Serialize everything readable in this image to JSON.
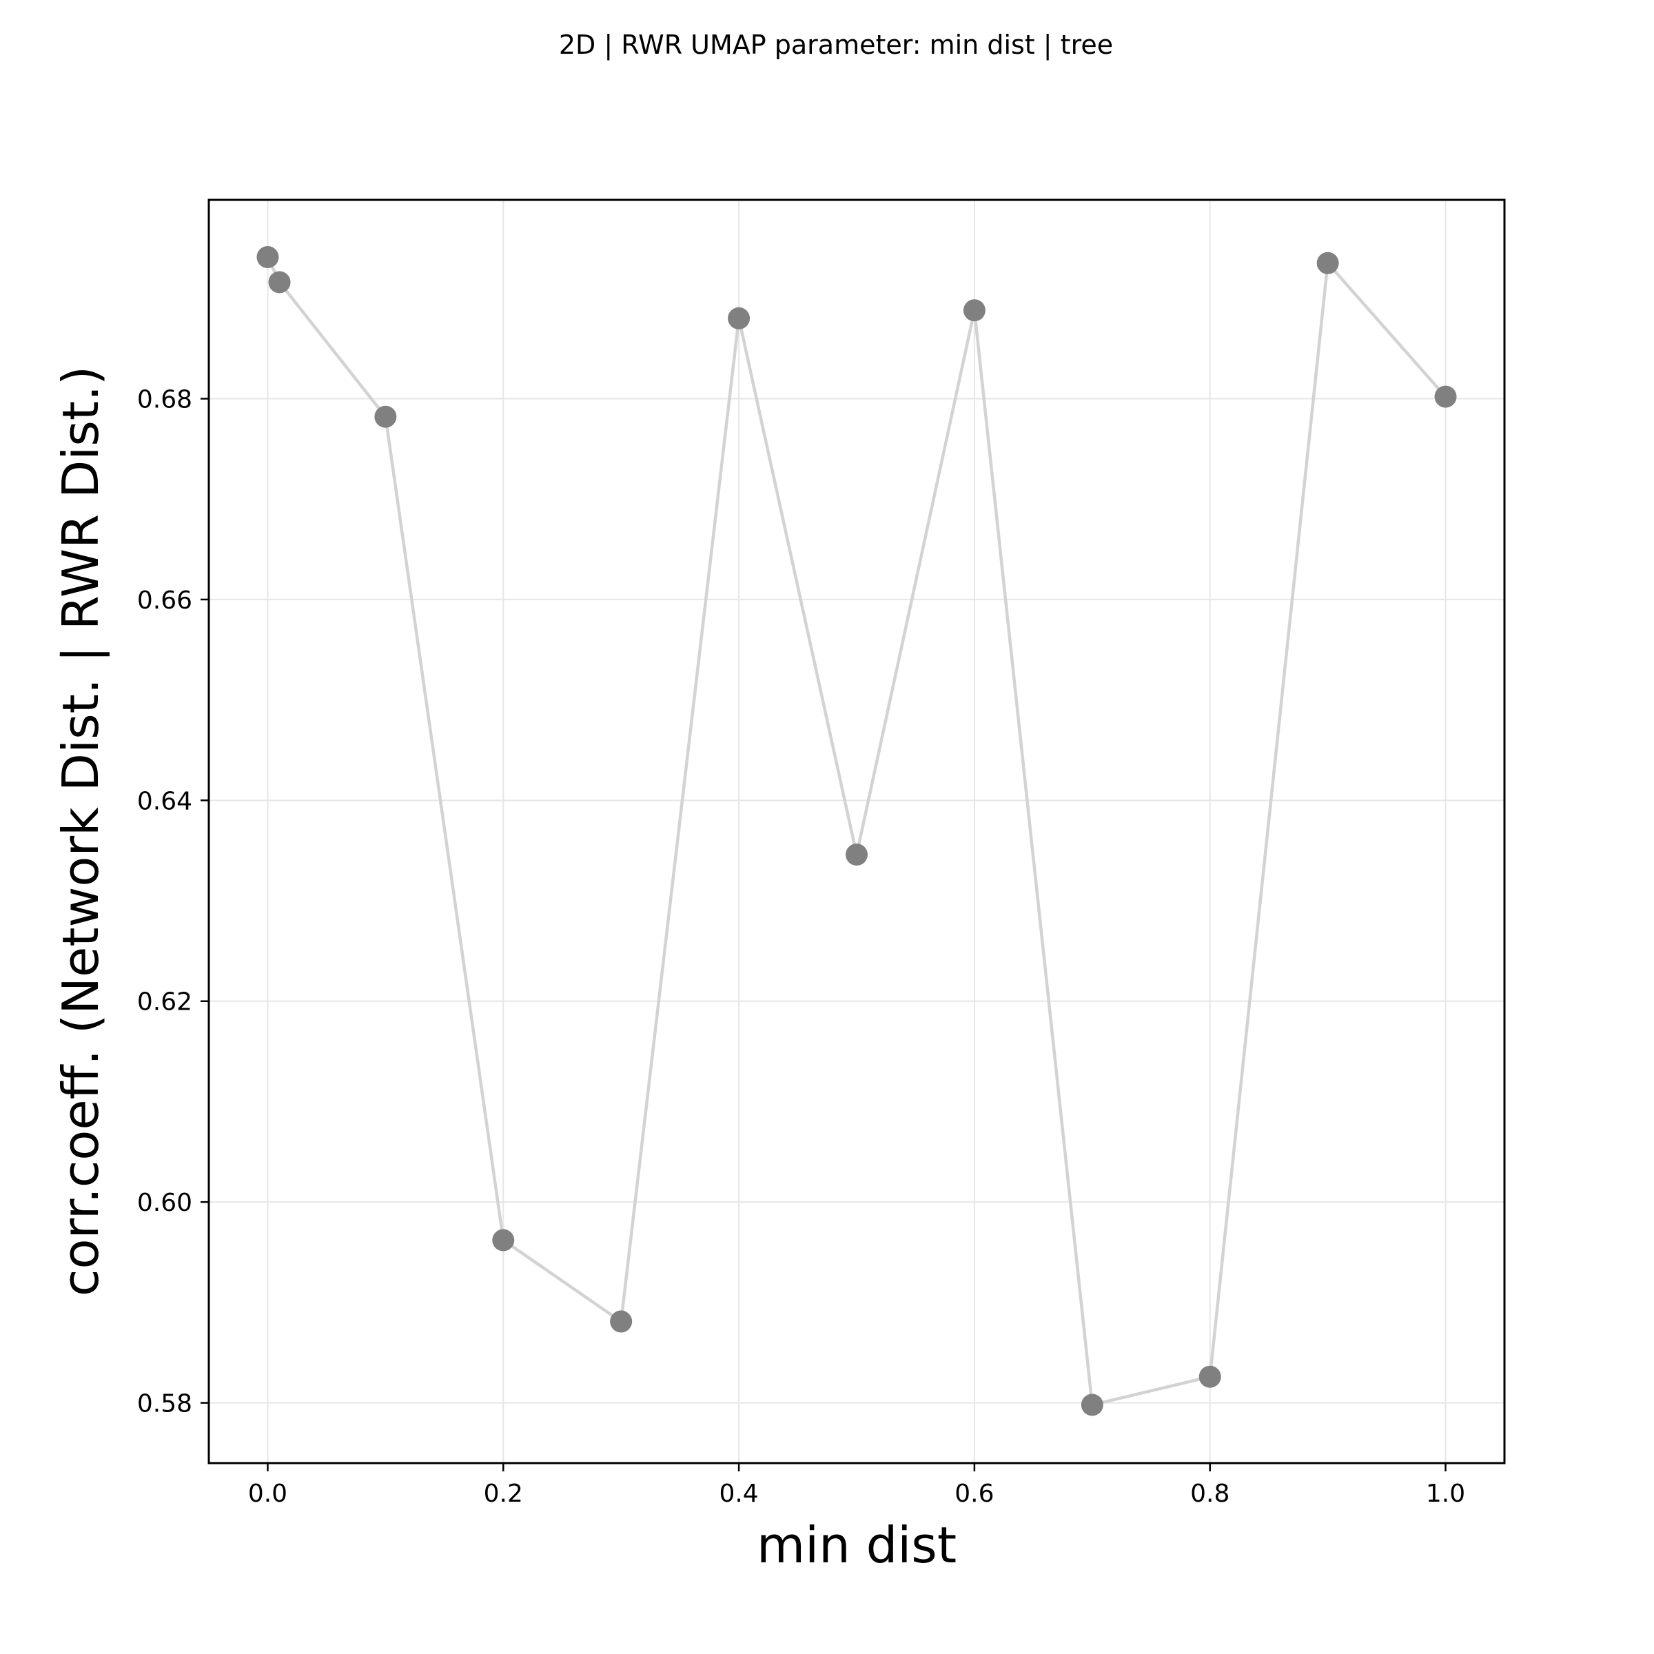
{
  "chart_data": {
    "type": "line",
    "title": "2D | RWR UMAP parameter: min dist | tree",
    "xlabel": "min dist",
    "ylabel": "corr.coeff. (Network Dist. | RWR Dist.)",
    "xlim": [
      -0.05,
      1.05
    ],
    "ylim": [
      0.574,
      0.6998
    ],
    "x_ticks": [
      0.0,
      0.2,
      0.4,
      0.6,
      0.8,
      1.0
    ],
    "x_tick_labels": [
      "0.0",
      "0.2",
      "0.4",
      "0.6",
      "0.8",
      "1.0"
    ],
    "y_ticks": [
      0.58,
      0.6,
      0.62,
      0.64,
      0.66,
      0.68
    ],
    "y_tick_labels": [
      "0.58",
      "0.60",
      "0.62",
      "0.64",
      "0.66",
      "0.68"
    ],
    "grid": true,
    "legend": false,
    "series": [
      {
        "x": [
          0.0,
          0.01,
          0.1,
          0.2,
          0.3,
          0.4,
          0.5,
          0.6,
          0.7,
          0.8,
          0.9,
          1.0
        ],
        "y": [
          0.6941,
          0.6916,
          0.6782,
          0.5962,
          0.5881,
          0.688,
          0.6346,
          0.6888,
          0.5798,
          0.5826,
          0.6935,
          0.6802
        ]
      }
    ],
    "colors": {
      "marker": "#808080",
      "line": "#d3d3d3",
      "grid": "#e6e6e6",
      "axes": "#000000"
    }
  }
}
